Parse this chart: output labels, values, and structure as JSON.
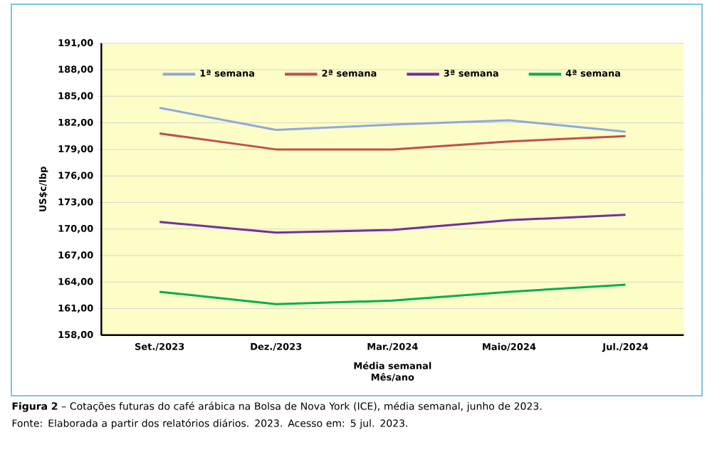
{
  "chart_data": {
    "type": "line",
    "categories": [
      "Set./2023",
      "Dez./2023",
      "Mar./2024",
      "Maio/2024",
      "Jul./2024"
    ],
    "series": [
      {
        "name": "1ª semana",
        "color": "#8eaadb",
        "values": [
          183.7,
          181.2,
          181.8,
          182.3,
          181.0
        ]
      },
      {
        "name": "2ª semana",
        "color": "#c0504d",
        "values": [
          180.8,
          179.0,
          179.0,
          179.9,
          180.5
        ]
      },
      {
        "name": "3ª semana",
        "color": "#7030a0",
        "values": [
          170.8,
          169.6,
          169.9,
          171.0,
          171.6
        ]
      },
      {
        "name": "4ª semana",
        "color": "#00b050",
        "values": [
          162.9,
          161.5,
          161.9,
          162.9,
          163.7
        ]
      }
    ],
    "ylim": [
      158,
      191
    ],
    "yticks": [
      {
        "value": 158,
        "label": "158,00"
      },
      {
        "value": 161,
        "label": "161,00"
      },
      {
        "value": 164,
        "label": "164,00"
      },
      {
        "value": 167,
        "label": "167,00"
      },
      {
        "value": 170,
        "label": "170,00"
      },
      {
        "value": 173,
        "label": "173,00"
      },
      {
        "value": 176,
        "label": "176,00"
      },
      {
        "value": 179,
        "label": "179,00"
      },
      {
        "value": 182,
        "label": "182,00"
      },
      {
        "value": 185,
        "label": "185,00"
      },
      {
        "value": 188,
        "label": "188,00"
      },
      {
        "value": 191,
        "label": "191,00"
      }
    ],
    "xlabel": "Média semanal Mês/ano",
    "ylabel": "US$c/lbp",
    "grid": "y",
    "legend": "top",
    "line_style": "solid",
    "annotations": [
      "**Figura 2** – Cotações futuras do café arábica na Bolsa de Nova York (ICE), média semanal, junho de 2023.",
      "Fonte: Elaborada a partir dos relatórios diários. 2023. Acesso em: 5 jul. 2023."
    ]
  }
}
